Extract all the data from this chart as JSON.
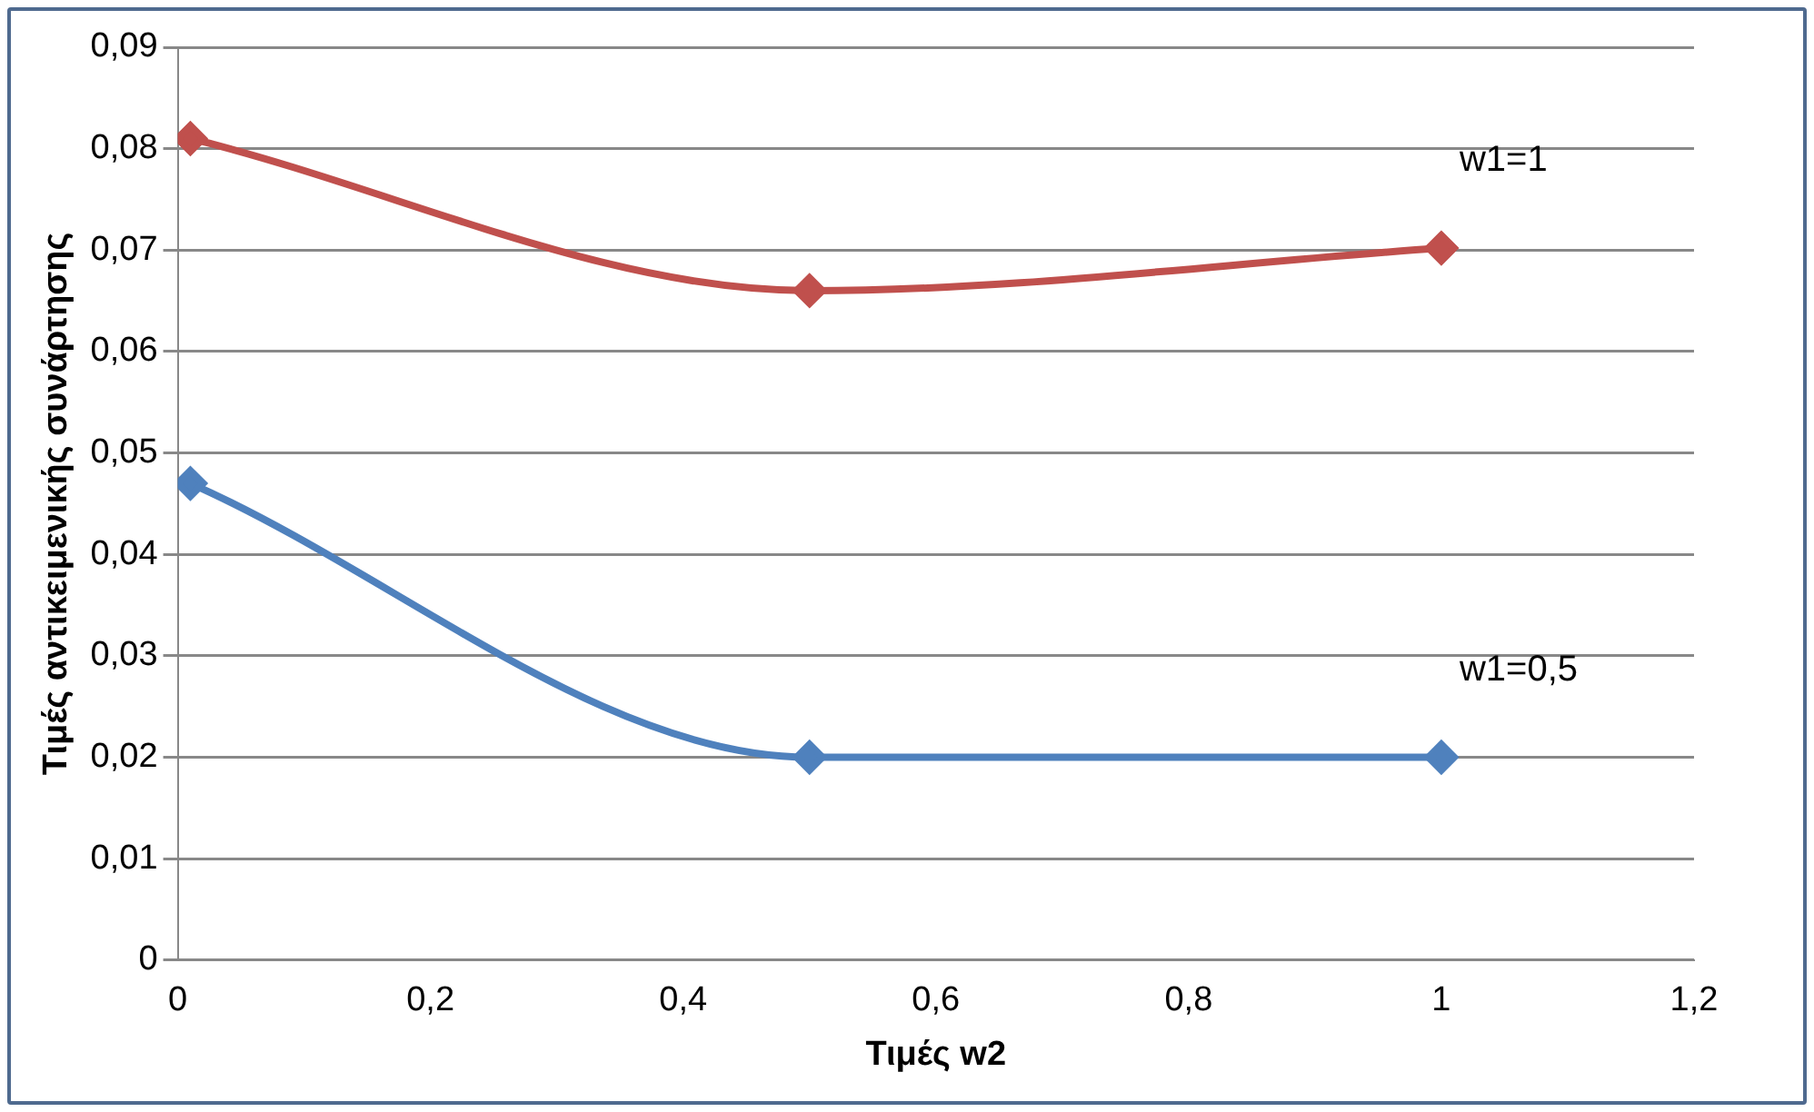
{
  "chart_data": {
    "type": "line",
    "xlabel": "Τιμές w2",
    "ylabel": "Τιμές αντικειμενικής συνάρτησης",
    "series": [
      {
        "name": "w1=1",
        "color": "#c0504d",
        "x": [
          0.01,
          0.5,
          1
        ],
        "values": [
          0.081,
          0.066,
          0.0702
        ]
      },
      {
        "name": "w1=0,5",
        "color": "#4f81bd",
        "x": [
          0.01,
          0.5,
          1
        ],
        "values": [
          0.047,
          0.02,
          0.02
        ]
      }
    ],
    "xlim": [
      0,
      1.2
    ],
    "xticks": [
      0,
      {
        "value": 0.2,
        "label": "0,2"
      },
      {
        "value": 0.4,
        "label": "0,4"
      },
      {
        "value": 0.6,
        "label": "0,6"
      },
      {
        "value": 0.8,
        "label": "0,8"
      },
      1,
      {
        "value": 1.2,
        "label": "1,2"
      }
    ],
    "ylim": [
      0,
      0.09
    ],
    "yticks": [
      0,
      {
        "value": 0.01,
        "label": "0,01"
      },
      {
        "value": 0.02,
        "label": "0,02"
      },
      {
        "value": 0.03,
        "label": "0,03"
      },
      {
        "value": 0.04,
        "label": "0,04"
      },
      {
        "value": 0.05,
        "label": "0,05"
      },
      {
        "value": 0.06,
        "label": "0,06"
      },
      {
        "value": 0.07,
        "label": "0,07"
      },
      {
        "value": 0.08,
        "label": "0,08"
      },
      {
        "value": 0.09,
        "label": "0,09"
      }
    ],
    "grid": "y",
    "legend": false,
    "marker": "diamond",
    "line_style": "solid"
  }
}
